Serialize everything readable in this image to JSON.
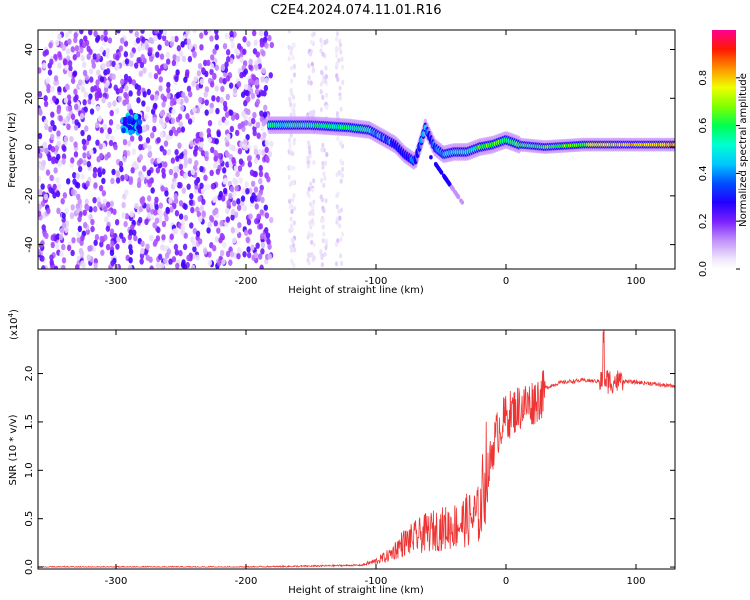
{
  "title": "C2E4.2024.074.11.01.R16",
  "chart_data": [
    {
      "type": "heatmap",
      "name": "spectrogram",
      "xlabel": "Height of straight line (km)",
      "ylabel": "Frequency (Hz)",
      "xlim": [
        -360,
        130
      ],
      "ylim": [
        -50,
        48
      ],
      "xticks": [
        -300,
        -200,
        -100,
        0,
        100
      ],
      "yticks": [
        -40,
        -20,
        0,
        20,
        40
      ],
      "colorbar": {
        "label": "Normalized spectral amplitude",
        "range": [
          0.0,
          1.0
        ],
        "ticks": [
          0.0,
          0.2,
          0.4,
          0.6,
          0.8
        ],
        "colors": [
          "#ffffff",
          "#e8dcf8",
          "#9b30ff",
          "#4400ff",
          "#0000ff",
          "#00c0ff",
          "#00ffcc",
          "#00ff40",
          "#a0ff00",
          "#ffff00",
          "#ffa000",
          "#ff2000",
          "#ff0080"
        ]
      },
      "ridge": {
        "height_km": [
          -290,
          -180,
          -150,
          -120,
          -105,
          -95,
          -85,
          -78,
          -70,
          -62,
          -55,
          -48,
          -40,
          -30,
          -20,
          -10,
          0,
          10,
          30,
          60,
          90,
          130
        ],
        "frequency_hz": [
          8,
          9,
          9,
          8,
          7,
          4,
          1,
          -3,
          -6,
          8,
          0,
          -3,
          -2,
          -2,
          0,
          1,
          3,
          1,
          0,
          1,
          1,
          1
        ],
        "amplitude": [
          0.3,
          0.5,
          0.55,
          0.5,
          0.5,
          0.35,
          0.35,
          0.3,
          0.3,
          0.35,
          0.35,
          0.4,
          0.5,
          0.55,
          0.6,
          0.65,
          0.55,
          0.6,
          0.6,
          0.7,
          0.8,
          0.85
        ]
      },
      "noise_region_km": [
        -360,
        -180
      ]
    },
    {
      "type": "line",
      "name": "snr",
      "xlabel": "Height of straight line (km)",
      "ylabel": "SNR (10 * v/v)",
      "yscale_label": "(x10",
      "yscale_exponent": "4",
      "xlim": [
        -360,
        130
      ],
      "ylim": [
        -0.02,
        2.45
      ],
      "xticks": [
        -300,
        -200,
        -100,
        0,
        100
      ],
      "yticks": [
        0.0,
        0.5,
        1.0,
        1.5,
        2.0
      ],
      "color": "#ee3333",
      "trend": {
        "x": [
          -360,
          -200,
          -150,
          -110,
          -100,
          -90,
          -80,
          -60,
          -40,
          -30,
          -20,
          -15,
          -10,
          -5,
          0,
          10,
          20,
          30,
          40,
          50,
          60,
          70,
          75,
          80,
          90,
          100,
          110,
          120,
          130
        ],
        "y": [
          0.0,
          0.0,
          0.01,
          0.02,
          0.05,
          0.1,
          0.2,
          0.3,
          0.35,
          0.4,
          0.45,
          0.9,
          1.3,
          1.5,
          1.6,
          1.7,
          1.75,
          1.85,
          1.9,
          1.92,
          1.93,
          1.92,
          1.93,
          1.92,
          1.92,
          1.91,
          1.9,
          1.88,
          1.87
        ]
      },
      "peak": {
        "x": 75,
        "y": 2.4
      }
    }
  ]
}
